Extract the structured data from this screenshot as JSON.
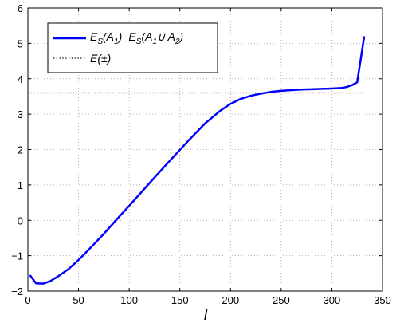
{
  "chart_data": {
    "type": "line",
    "xlabel": "l",
    "ylabel": "",
    "xlim": [
      0,
      350
    ],
    "ylim": [
      -2,
      6
    ],
    "xticks": [
      "0",
      "50",
      "100",
      "150",
      "200",
      "250",
      "300",
      "350"
    ],
    "yticks": [
      "−2",
      "−1",
      "0",
      "1",
      "2",
      "3",
      "4",
      "5",
      "6"
    ],
    "grid": true,
    "legend_position": "top-left",
    "series": [
      {
        "name": "E_S(A_1)−E_S(A_1∪ A_2)",
        "legend_parts": {
          "p1": "E",
          "s1": "S",
          "p2": "(A",
          "s2": "1",
          "p3": ")−E",
          "s3": "S",
          "p4": "(A",
          "s4": "1",
          "p5": "∪ A",
          "s5": "2",
          "p6": ")"
        },
        "style": "solid",
        "color": "#0000ff",
        "x": [
          2,
          8,
          15,
          22,
          30,
          40,
          50,
          60,
          75,
          90,
          100,
          110,
          125,
          140,
          150,
          160,
          175,
          190,
          200,
          210,
          220,
          230,
          240,
          250,
          260,
          270,
          280,
          290,
          300,
          310,
          315,
          320,
          325,
          332
        ],
        "y": [
          -1.55,
          -1.78,
          -1.79,
          -1.72,
          -1.58,
          -1.38,
          -1.12,
          -0.83,
          -0.38,
          0.1,
          0.41,
          0.73,
          1.21,
          1.68,
          1.99,
          2.3,
          2.74,
          3.1,
          3.29,
          3.43,
          3.52,
          3.58,
          3.63,
          3.66,
          3.68,
          3.695,
          3.705,
          3.715,
          3.725,
          3.74,
          3.77,
          3.82,
          3.9,
          5.2
        ]
      },
      {
        "name": "E(±)",
        "style": "dotted",
        "color": "#000000",
        "x": [
          0,
          332
        ],
        "y": [
          3.6,
          3.6
        ]
      }
    ]
  }
}
